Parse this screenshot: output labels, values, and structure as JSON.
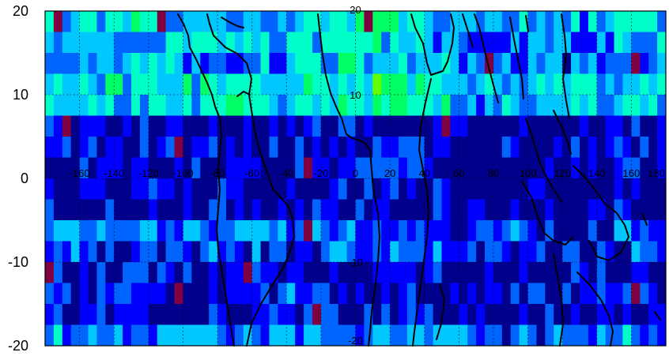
{
  "chart_data": {
    "type": "heatmap",
    "title": "",
    "xlabel": "",
    "ylabel": "",
    "xlim": [
      -180,
      180
    ],
    "ylim": [
      -20,
      20
    ],
    "grid": true,
    "y_axis_ticks": [
      "20",
      "10",
      "0",
      "-10",
      "-20"
    ],
    "in_plot_lon_labels": [
      "-160",
      "-140",
      "-120",
      "-100",
      "-80",
      "-60",
      "-40",
      "-20",
      "0",
      "20",
      "40",
      "60",
      "80",
      "100",
      "120",
      "140",
      "160",
      "180"
    ],
    "in_plot_lat_labels": [
      "20",
      "10",
      "-10",
      "-20"
    ],
    "colormap": [
      "#00008c",
      "#0000ff",
      "#0064ff",
      "#00c8ff",
      "#00ffc8",
      "#00ff64",
      "#64ff00",
      "#c8ff00",
      "#ffff00",
      "#800040"
    ],
    "lat_bands": [
      {
        "lat": 18.75,
        "dominant_level": 0.4
      },
      {
        "lat": 16.25,
        "dominant_level": 0.35
      },
      {
        "lat": 13.75,
        "dominant_level": 0.32
      },
      {
        "lat": 11.25,
        "dominant_level": 0.45
      },
      {
        "lat": 8.75,
        "dominant_level": 0.42
      },
      {
        "lat": 6.25,
        "dominant_level": 0.12
      },
      {
        "lat": 3.75,
        "dominant_level": 0.15
      },
      {
        "lat": 1.25,
        "dominant_level": 0.13
      },
      {
        "lat": -1.25,
        "dominant_level": 0.1
      },
      {
        "lat": -3.75,
        "dominant_level": 0.12
      },
      {
        "lat": -6.25,
        "dominant_level": 0.28
      },
      {
        "lat": -8.75,
        "dominant_level": 0.22
      },
      {
        "lat": -11.25,
        "dominant_level": 0.15
      },
      {
        "lat": -13.75,
        "dominant_level": 0.18
      },
      {
        "lat": -16.25,
        "dominant_level": 0.14
      },
      {
        "lat": -18.75,
        "dominant_level": 0.3
      }
    ]
  }
}
